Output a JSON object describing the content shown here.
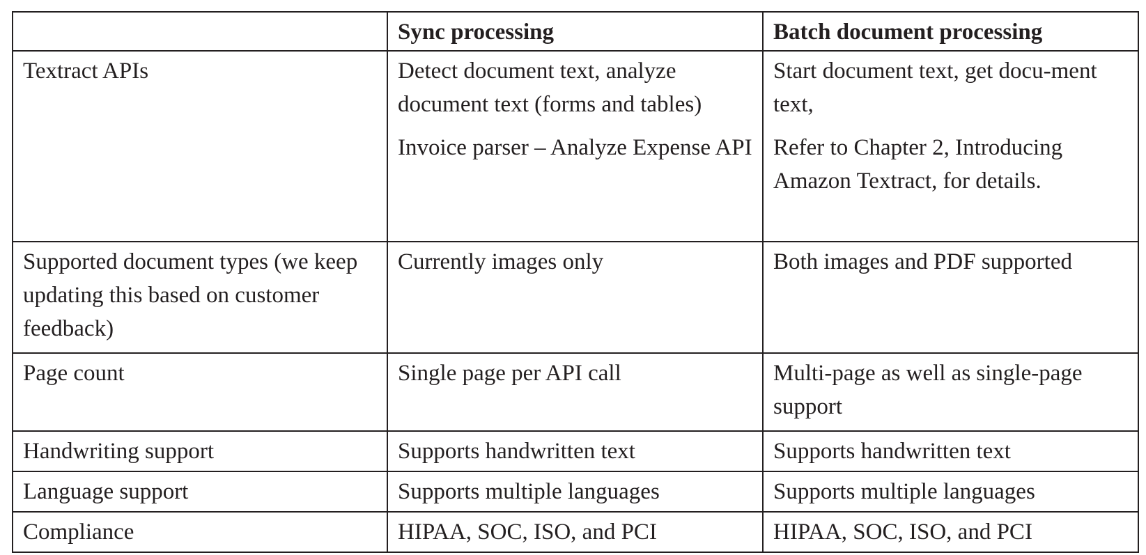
{
  "table": {
    "headers": [
      "",
      "Sync processing",
      "Batch document processing"
    ],
    "rows": [
      {
        "label": "Textract APIs",
        "sync": [
          "Detect document text, analyze document text (forms and tables)",
          "Invoice parser – Analyze Expense API"
        ],
        "batch": [
          "Start document text, get docu-ment text,",
          "Refer to Chapter 2, Introducing Amazon Textract, for details."
        ]
      },
      {
        "label": "Supported document types (we keep updating this based on customer feedback)",
        "sync": [
          "Currently images only"
        ],
        "batch": [
          "Both images and PDF supported"
        ]
      },
      {
        "label": "Page count",
        "sync": [
          "Single page per API call"
        ],
        "batch": [
          "Multi-page as well as single-page support"
        ]
      },
      {
        "label": "Handwriting support",
        "sync": [
          "Supports handwritten text"
        ],
        "batch": [
          "Supports handwritten text"
        ]
      },
      {
        "label": "Language support",
        "sync": [
          "Supports multiple languages"
        ],
        "batch": [
          "Supports multiple languages"
        ]
      },
      {
        "label": "Compliance",
        "sync": [
          "HIPAA, SOC, ISO, and PCI"
        ],
        "batch": [
          "HIPAA, SOC, ISO, and PCI"
        ]
      }
    ]
  }
}
